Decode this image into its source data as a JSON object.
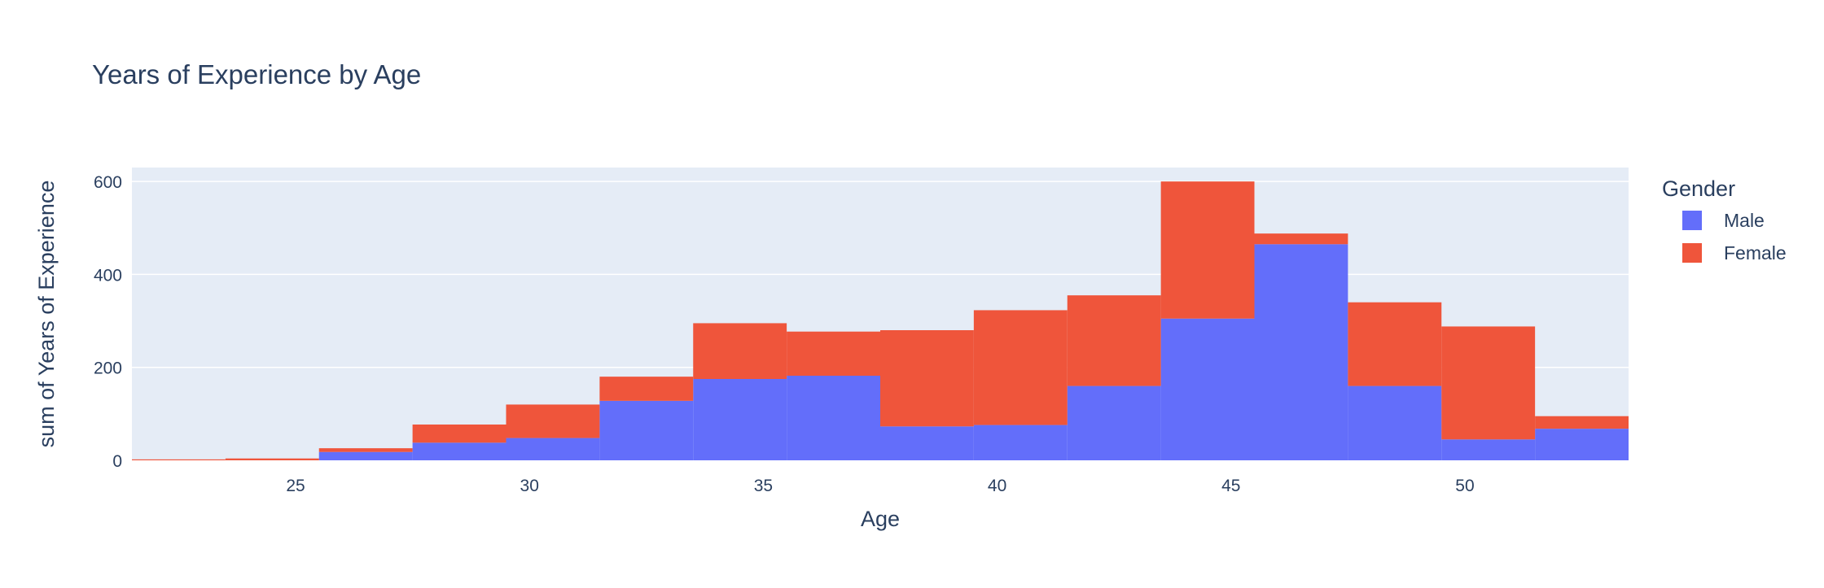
{
  "chart_data": {
    "type": "bar",
    "title": "Years of Experience by Age",
    "xlabel": "Age",
    "ylabel": "sum of Years of Experience",
    "xlim": [
      21.5,
      53.5
    ],
    "ylim": [
      0,
      630
    ],
    "x_ticks": [
      25,
      30,
      35,
      40,
      45,
      50
    ],
    "y_ticks": [
      0,
      200,
      400,
      600
    ],
    "bin_size": 2,
    "bin_starts": [
      21.5,
      23.5,
      25.5,
      27.5,
      29.5,
      31.5,
      33.5,
      35.5,
      37.5,
      39.5,
      41.5,
      43.5,
      45.5,
      47.5,
      49.5,
      51.5
    ],
    "stacked": true,
    "grid": true,
    "legend": {
      "title": "Gender",
      "position": "right"
    },
    "series": [
      {
        "name": "Male",
        "color": "#636efa",
        "values": [
          0,
          0,
          18,
          38,
          48,
          128,
          175,
          182,
          73,
          76,
          160,
          305,
          465,
          160,
          45,
          68
        ]
      },
      {
        "name": "Female",
        "color": "#ef553b",
        "values": [
          2,
          4,
          8,
          39,
          72,
          52,
          120,
          95,
          207,
          247,
          195,
          295,
          23,
          180,
          243,
          27
        ]
      }
    ]
  }
}
